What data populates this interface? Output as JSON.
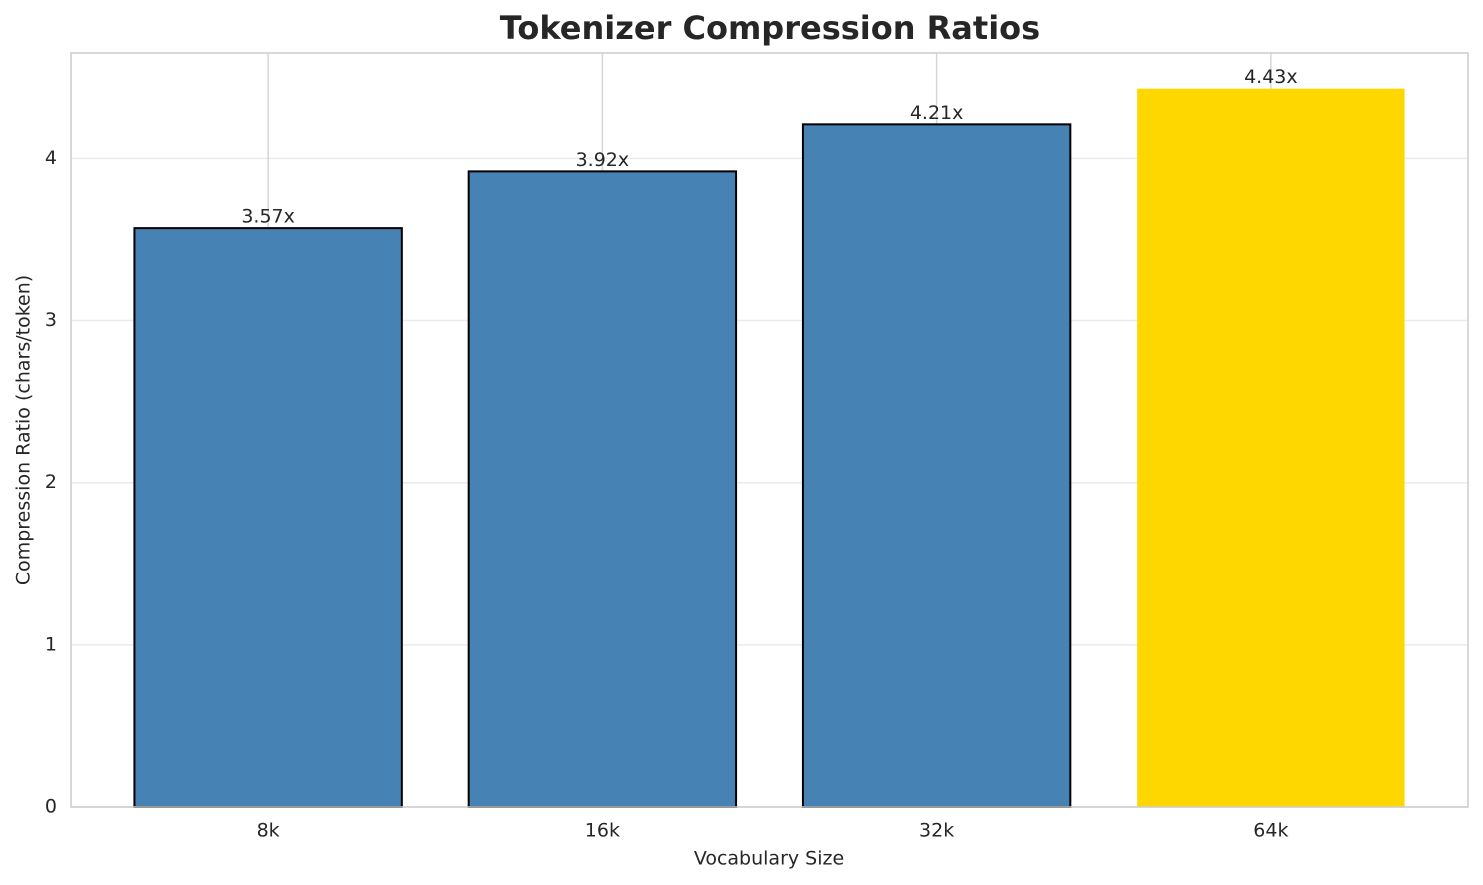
{
  "chart_data": {
    "type": "bar",
    "title": "Tokenizer Compression Ratios",
    "x_label": "Vocabulary Size",
    "y_label": "Compression Ratio (chars/token)",
    "categories": [
      "8k",
      "16k",
      "32k",
      "64k"
    ],
    "values": [
      3.57,
      3.92,
      4.21,
      4.43
    ],
    "value_labels": [
      "3.57x",
      "3.92x",
      "4.21x",
      "4.43x"
    ],
    "colors": [
      "#4682b4",
      "#4682b4",
      "#4682b4",
      "#ffd700"
    ],
    "edgecolors": [
      "#000000",
      "#000000",
      "#000000",
      "none"
    ],
    "ylim": [
      0,
      4.65
    ],
    "yticks": [
      0,
      1,
      2,
      3,
      4
    ],
    "grid": true
  }
}
